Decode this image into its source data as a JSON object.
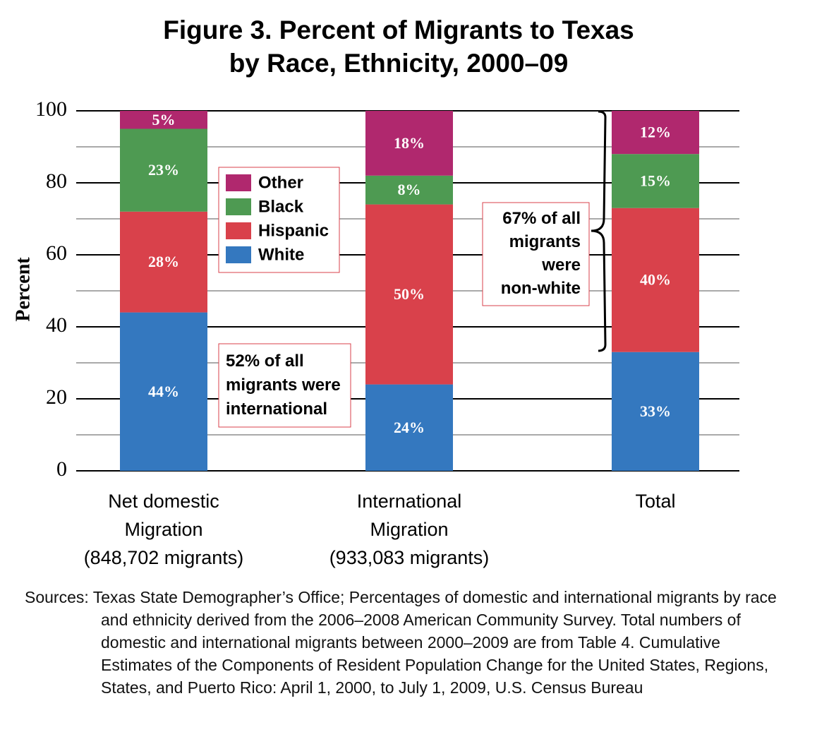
{
  "chart_data": {
    "type": "stacked_bar",
    "title": "Figure 3. Percent of Migrants to Texas\nby Race, Ethnicity, 2000–09",
    "y_label": "Percent",
    "categories": [
      "Net domestic\nMigration\n(848,702 migrants)",
      "International\nMigration\n(933,083 migrants)",
      "Total"
    ],
    "series": [
      {
        "name": "White",
        "color": "#3478bf",
        "values": [
          44,
          24,
          33
        ],
        "value_labels": [
          "44%",
          "24%",
          "33%"
        ]
      },
      {
        "name": "Hispanic",
        "color": "#d9414b",
        "values": [
          28,
          50,
          40
        ],
        "value_labels": [
          "28%",
          "50%",
          "40%"
        ]
      },
      {
        "name": "Black",
        "color": "#4e9a52",
        "values": [
          23,
          8,
          15
        ],
        "value_labels": [
          "23%",
          "8%",
          "15%"
        ]
      },
      {
        "name": "Other",
        "color": "#b0286e",
        "values": [
          5,
          18,
          12
        ],
        "value_labels": [
          "5%",
          "18%",
          "12%"
        ]
      }
    ],
    "ylim": [
      0,
      100
    ],
    "yticks": [
      0,
      20,
      40,
      60,
      80,
      100
    ],
    "minor_yticks": [
      10,
      30,
      50,
      70,
      90
    ],
    "grid": true,
    "annotations": [
      "52% of all\nmigrants were\ninternational",
      "67% of all\nmigrants\nwere\nnon-white"
    ],
    "source": "Sources: Texas State Demographer’s Office; Percentages of domestic and international migrants by race and ethnicity derived from the 2006–2008 American Community Survey. Total numbers of domestic and international migrants between 2000–2009 are from Table 4. Cumulative Estimates of the Components of Resident Population Change for the United States, Regions, States, and Puerto Rico: April 1, 2000, to July 1, 2009, U.S. Census Bureau"
  }
}
